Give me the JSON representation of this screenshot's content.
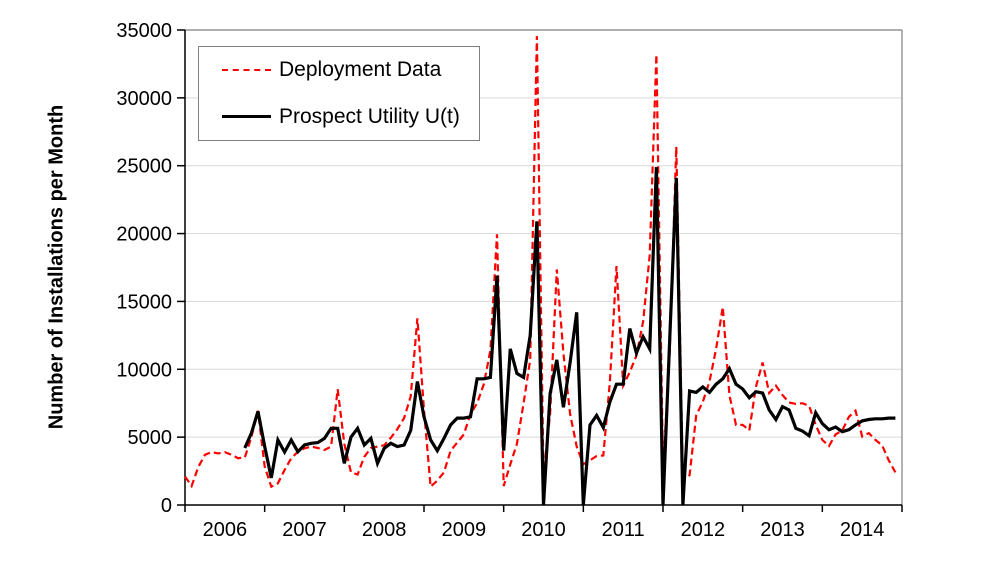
{
  "chart_data": {
    "type": "line",
    "title": "",
    "xlabel": "",
    "ylabel": "Number of Installations per Month",
    "ylim": [
      0,
      35000
    ],
    "ytick_step": 5000,
    "ytick_labels": [
      "0",
      "5000",
      "10000",
      "15000",
      "20000",
      "25000",
      "30000",
      "35000"
    ],
    "xtick_labels": [
      "2006",
      "2007",
      "2008",
      "2009",
      "2010",
      "2011",
      "2012",
      "2013",
      "2014"
    ],
    "x_start": "2006-01",
    "x_months": 108,
    "grid": "horizontal",
    "legend_position": "top-left",
    "colors": {
      "deployment": "#FF0000",
      "prospect": "#000000",
      "gridline": "#D9D9D9",
      "plot_border": "#808080",
      "axis": "#000000"
    },
    "series": [
      {
        "name": "Deployment Data",
        "color": "#FF0000",
        "style": "dashed",
        "values": [
          2100,
          1400,
          2800,
          3700,
          3900,
          3800,
          3900,
          3700,
          3450,
          3500,
          5000,
          6950,
          2830,
          1350,
          1600,
          2580,
          3440,
          3930,
          4180,
          4300,
          4200,
          4050,
          4300,
          8530,
          4500,
          2400,
          2250,
          3550,
          4200,
          4300,
          4400,
          4950,
          5600,
          6400,
          8000,
          13760,
          7000,
          1350,
          1800,
          2400,
          4000,
          4600,
          5200,
          6700,
          7500,
          8900,
          11400,
          19950,
          1400,
          3000,
          4500,
          7500,
          10700,
          34550,
          2100,
          6700,
          17350,
          11200,
          6700,
          4300,
          3000,
          3300,
          3600,
          3650,
          9100,
          17600,
          8800,
          9800,
          11000,
          13500,
          18400,
          33200,
          2600,
          11000,
          26400,
          1800,
          2200,
          6600,
          7600,
          9100,
          11500,
          14600,
          8100,
          5900,
          5900,
          5500,
          8700,
          10500,
          8250,
          8800,
          8100,
          7550,
          7450,
          7500,
          7300,
          5900,
          4800,
          4350,
          5200,
          5500,
          6500,
          6950,
          5050,
          5300,
          4800,
          4400,
          3300,
          2400
        ]
      },
      {
        "name": "Prospect Utility U(t)",
        "color": "#000000",
        "style": "solid",
        "values": [
          null,
          null,
          null,
          null,
          null,
          null,
          null,
          null,
          null,
          4200,
          5300,
          6900,
          4300,
          2000,
          4790,
          3900,
          4790,
          3930,
          4420,
          4550,
          4600,
          4900,
          5650,
          5650,
          3070,
          5000,
          5650,
          4420,
          4910,
          3070,
          4180,
          4550,
          4300,
          4420,
          5500,
          9100,
          6500,
          4800,
          4000,
          4900,
          5900,
          6400,
          6400,
          6500,
          9300,
          9300,
          9400,
          16900,
          4000,
          11500,
          9700,
          9400,
          12500,
          20900,
          0,
          8200,
          10700,
          7200,
          10500,
          14200,
          0,
          5900,
          6600,
          5700,
          7600,
          8900,
          8900,
          13000,
          11200,
          12400,
          11500,
          24900,
          0,
          12000,
          24100,
          0,
          8400,
          8300,
          8700,
          8300,
          8900,
          9300,
          10050,
          8900,
          8550,
          7900,
          8350,
          8250,
          7000,
          6300,
          7250,
          7000,
          5650,
          5450,
          5100,
          6800,
          6000,
          5550,
          5750,
          5400,
          5550,
          5900,
          6200,
          6300,
          6350,
          6350,
          6400,
          6400
        ]
      }
    ]
  }
}
